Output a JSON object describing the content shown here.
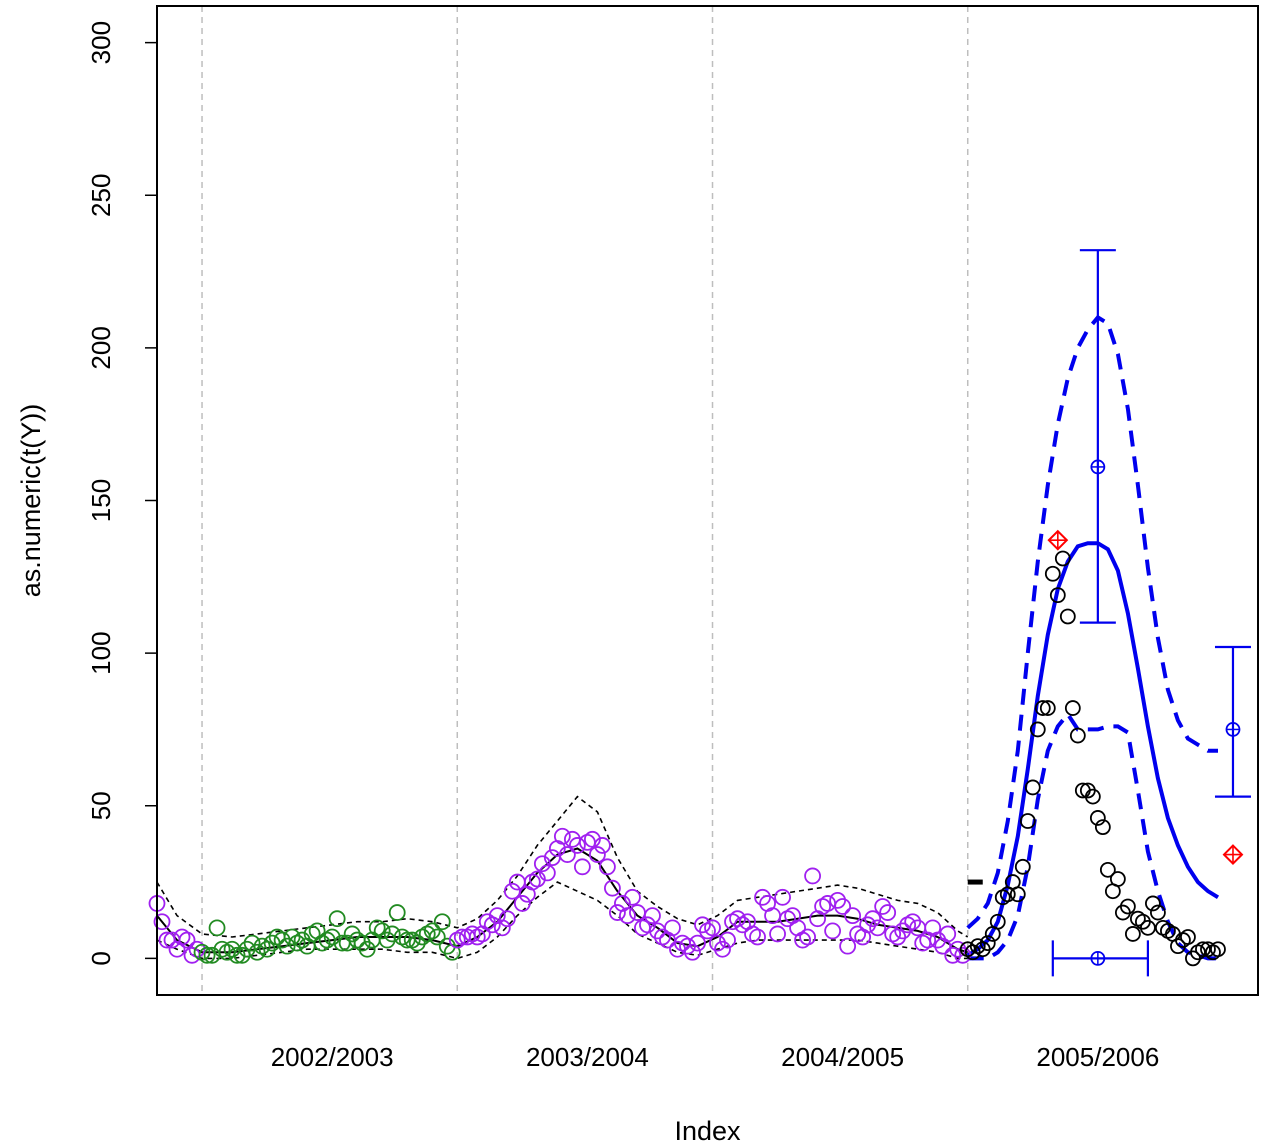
{
  "chart_data": {
    "type": "scatter",
    "xlabel": "Index",
    "ylabel": "as.numeric(t(Y))",
    "xlim": [
      0,
      220
    ],
    "ylim": [
      -12,
      312
    ],
    "y_ticks": [
      0,
      50,
      100,
      150,
      200,
      250,
      300
    ],
    "season_labels": [
      {
        "x": 35,
        "label": "2002/2003"
      },
      {
        "x": 86,
        "label": "2003/2004"
      },
      {
        "x": 137,
        "label": "2004/2005"
      },
      {
        "x": 188,
        "label": "2005/2006"
      }
    ],
    "season_boundaries": [
      9,
      60,
      111,
      162
    ],
    "grid": "vertical dashed at season boundaries",
    "colors": {
      "season_2002": "#228B22",
      "season_2003_2004": "#A020F0",
      "observed_2005": "#000000",
      "forecast": "#0000EE",
      "highlight": "#FF0000",
      "grid": "#BEBEBE"
    },
    "observed": [
      {
        "season": "2001/2002",
        "color": "#A020F0",
        "x": [
          0,
          1,
          2,
          3,
          4,
          5,
          6,
          7,
          8
        ],
        "y": [
          18,
          12,
          6,
          6,
          3,
          7,
          6,
          1,
          3
        ]
      },
      {
        "season": "2002/2003",
        "color": "#228B22",
        "x": [
          9,
          10,
          11,
          12,
          13,
          14,
          15,
          16,
          17,
          18,
          19,
          20,
          21,
          22,
          23,
          24,
          25,
          26,
          27,
          28,
          29,
          30,
          31,
          32,
          33,
          34,
          35,
          36,
          37,
          38,
          39,
          40,
          41,
          42,
          43,
          44,
          45,
          46,
          47,
          48,
          49,
          50,
          51,
          52,
          53,
          54,
          55,
          56,
          57,
          58,
          59
        ],
        "y": [
          2,
          1,
          1,
          10,
          3,
          2,
          3,
          1,
          1,
          3,
          5,
          2,
          4,
          3,
          5,
          7,
          6,
          4,
          7,
          5,
          6,
          4,
          8,
          9,
          5,
          6,
          7,
          13,
          5,
          5,
          8,
          6,
          5,
          3,
          6,
          10,
          9,
          6,
          8,
          15,
          7,
          6,
          6,
          5,
          7,
          8,
          9,
          7,
          12,
          4,
          2
        ]
      },
      {
        "season": "2003/2004",
        "color": "#A020F0",
        "x": [
          60,
          61,
          62,
          63,
          64,
          65,
          66,
          67,
          68,
          69,
          70,
          71,
          72,
          73,
          74,
          75,
          76,
          77,
          78,
          79,
          80,
          81,
          82,
          83,
          84,
          85,
          86,
          87,
          88,
          89,
          90,
          91,
          92,
          93,
          94,
          95,
          96,
          97,
          98,
          99,
          100,
          101,
          102,
          103,
          104,
          105,
          106,
          107,
          108,
          109,
          110
        ],
        "y": [
          6,
          7,
          7,
          8,
          7,
          8,
          12,
          11,
          14,
          10,
          13,
          22,
          25,
          18,
          21,
          25,
          26,
          31,
          28,
          33,
          36,
          40,
          34,
          39,
          37,
          30,
          38,
          39,
          34,
          37,
          30,
          23,
          15,
          18,
          14,
          20,
          15,
          10,
          11,
          14,
          9,
          7,
          6,
          10,
          3,
          5,
          4,
          2,
          5,
          11,
          9
        ]
      },
      {
        "season": "2004/2005",
        "color": "#A020F0",
        "x": [
          111,
          112,
          113,
          114,
          115,
          116,
          117,
          118,
          119,
          120,
          121,
          122,
          123,
          124,
          125,
          126,
          127,
          128,
          129,
          130,
          131,
          132,
          133,
          134,
          135,
          136,
          137,
          138,
          139,
          140,
          141,
          142,
          143,
          144,
          145,
          146,
          147,
          148,
          149,
          150,
          151,
          152,
          153,
          154,
          155,
          156,
          157,
          158,
          159,
          160,
          161
        ],
        "y": [
          10,
          5,
          3,
          6,
          12,
          13,
          11,
          12,
          8,
          7,
          20,
          18,
          14,
          8,
          20,
          13,
          14,
          10,
          6,
          7,
          27,
          13,
          17,
          18,
          9,
          19,
          17,
          4,
          14,
          8,
          7,
          11,
          13,
          10,
          17,
          15,
          8,
          7,
          9,
          11,
          12,
          10,
          5,
          6,
          10,
          6,
          4,
          8,
          1,
          3,
          1
        ]
      },
      {
        "season": "2005/2006",
        "color": "#000000",
        "x": [
          162,
          163,
          164,
          165,
          166,
          167,
          168,
          169,
          170,
          171,
          172,
          173,
          174,
          175,
          176,
          177,
          178,
          179,
          180,
          181,
          182,
          183,
          184,
          185,
          186,
          187,
          188,
          189,
          190,
          191,
          192,
          193,
          194,
          195,
          196,
          197,
          198,
          199,
          200,
          201,
          202,
          203,
          204,
          205,
          206,
          207,
          208,
          209,
          210,
          211,
          212
        ],
        "y": [
          3,
          2,
          4,
          3,
          5,
          8,
          12,
          20,
          21,
          25,
          21,
          30,
          45,
          56,
          75,
          82,
          82,
          126,
          119,
          131,
          112,
          82,
          73,
          55,
          55,
          53,
          46,
          43,
          29,
          22,
          26,
          15,
          17,
          8,
          13,
          12,
          10,
          18,
          15,
          10,
          9,
          8,
          4,
          6,
          7,
          0,
          2,
          3,
          3,
          2,
          3
        ]
      }
    ],
    "fitted_history": {
      "x": [
        0,
        4,
        9,
        15,
        20,
        25,
        30,
        35,
        40,
        45,
        50,
        55,
        60,
        64,
        68,
        72,
        76,
        80,
        84,
        88,
        92,
        96,
        100,
        104,
        108,
        112,
        116,
        120,
        124,
        128,
        132,
        136,
        140,
        144,
        148,
        152,
        156,
        160,
        162
      ],
      "y": [
        14,
        6,
        2,
        2,
        3,
        4,
        5,
        6,
        7,
        7,
        7,
        6,
        4,
        7,
        12,
        20,
        28,
        34,
        36,
        32,
        22,
        14,
        10,
        5,
        4,
        7,
        12,
        12,
        12,
        13,
        14,
        14,
        13,
        11,
        10,
        9,
        7,
        3,
        2
      ],
      "upper": [
        25,
        14,
        8,
        7,
        8,
        9,
        10,
        11,
        12,
        12,
        13,
        12,
        10,
        13,
        19,
        27,
        37,
        45,
        53,
        48,
        33,
        22,
        17,
        13,
        11,
        14,
        19,
        20,
        21,
        22,
        23,
        24,
        23,
        21,
        19,
        18,
        15,
        9,
        7
      ],
      "lower": [
        6,
        3,
        0,
        0,
        1,
        2,
        3,
        3,
        3,
        3,
        2,
        2,
        0,
        2,
        7,
        14,
        20,
        25,
        22,
        19,
        14,
        8,
        5,
        2,
        1,
        3,
        5,
        6,
        6,
        6,
        6,
        6,
        6,
        5,
        4,
        3,
        2,
        0,
        0
      ]
    },
    "forecast": {
      "x": [
        162,
        164,
        166,
        168,
        170,
        172,
        174,
        176,
        178,
        180,
        182,
        184,
        186,
        188,
        190,
        192,
        194,
        196,
        198,
        200,
        202,
        204,
        206,
        208,
        210,
        212
      ],
      "mean": [
        1,
        3,
        6,
        12,
        24,
        40,
        62,
        86,
        106,
        121,
        130,
        135,
        136,
        136,
        134,
        127,
        113,
        95,
        76,
        59,
        46,
        37,
        30,
        25,
        22,
        20
      ],
      "upper": [
        10,
        13,
        18,
        28,
        45,
        68,
        100,
        130,
        155,
        175,
        190,
        200,
        206,
        210,
        208,
        198,
        180,
        155,
        128,
        105,
        88,
        78,
        72,
        70,
        68,
        68
      ],
      "lower": [
        0,
        0,
        0,
        2,
        6,
        14,
        30,
        52,
        68,
        76,
        80,
        75,
        75,
        75,
        76,
        76,
        74,
        55,
        35,
        22,
        12,
        5,
        2,
        1,
        0,
        0
      ]
    },
    "peak_intensity": {
      "x": 188,
      "mean": 161,
      "lower": 110,
      "upper": 232
    },
    "peak_time": {
      "y": 0,
      "mean": 188,
      "lower": 179,
      "upper": 198
    },
    "season_total": {
      "x": 215,
      "mean": 75,
      "lower": 53,
      "upper": 102
    },
    "observed_markers": [
      {
        "x": 180,
        "y": 137
      },
      {
        "x": 215,
        "y": 34
      }
    ],
    "current_marker": {
      "x1": 162,
      "x2": 165,
      "y": 25
    }
  }
}
